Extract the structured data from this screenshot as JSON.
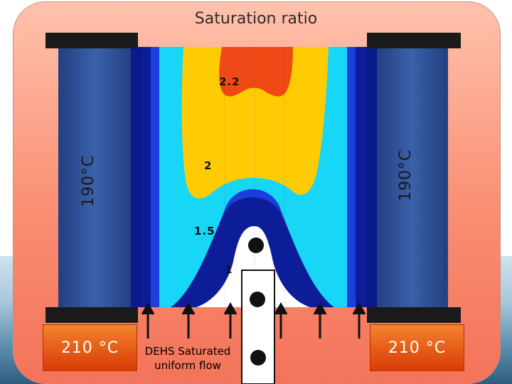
{
  "title": "Saturation ratio",
  "left_wall_label": "190°C",
  "right_wall_label": "190°C",
  "left_inlet_temp": "210 °C",
  "right_inlet_temp": "210 °C",
  "flow_label_line1": "DEHS Saturated",
  "flow_label_line2": "uniform flow",
  "contours": {
    "label_22": "2.2",
    "label_2": "2",
    "label_15": "1.5",
    "label_1": "1"
  },
  "colors": {
    "wall": "#2c4f96",
    "contour_22": "#ef4a16",
    "contour_2": "#ffcb05",
    "contour_18": "#18d6f6",
    "contour_15": "#1a3fdc",
    "contour_12": "#0d1d9a",
    "contour_1": "#ffffff",
    "temp_box": "#e65a14"
  }
}
